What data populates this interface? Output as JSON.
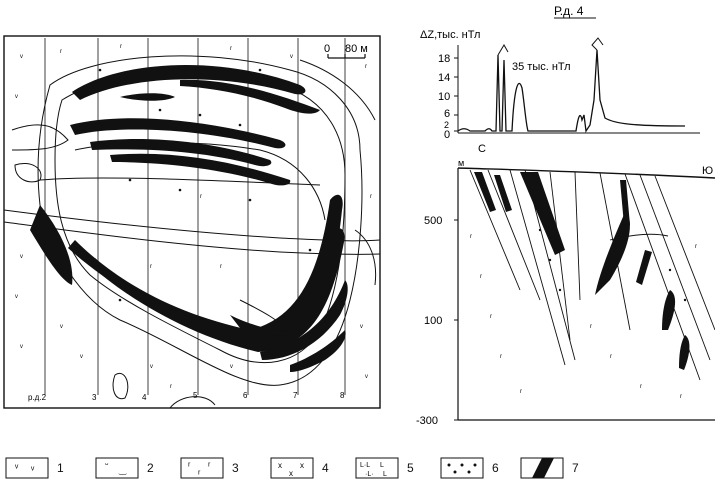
{
  "map": {
    "scale_start": "0",
    "scale_end": "80 м",
    "profiles": [
      "р.д.2",
      "3",
      "4",
      "5",
      "6",
      "7",
      "8"
    ]
  },
  "profile": {
    "title": "Р.д. 4",
    "magnetic": {
      "y_label": "ΔZ,тыс. нТл",
      "y_ticks": [
        "18",
        "14",
        "10",
        "6",
        "2",
        "0"
      ],
      "annotation": "35 тыс. нТл"
    },
    "section": {
      "north_label": "С",
      "south_label": "Ю",
      "m_label": "м",
      "elevation_ticks": [
        "500",
        "100",
        "-300"
      ]
    }
  },
  "legend": {
    "items": [
      "1",
      "2",
      "3",
      "4",
      "5",
      "6",
      "7"
    ]
  },
  "colors": {
    "ink": "#111111",
    "background": "#ffffff"
  }
}
